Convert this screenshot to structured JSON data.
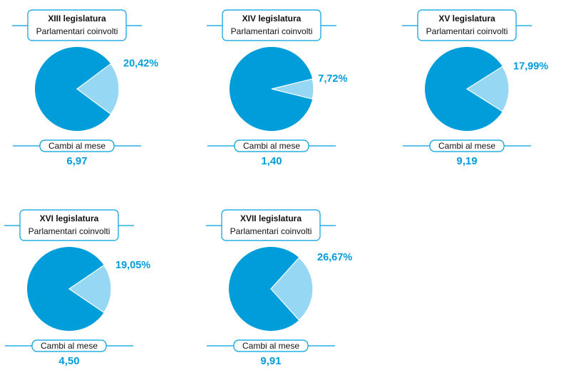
{
  "colors": {
    "main": "#009ddb",
    "slice": "#96d7f3",
    "line": "#009ddb",
    "text": "#111111"
  },
  "chart_data": [
    {
      "type": "pie",
      "title": "XIII legislatura",
      "subtitle": "Parlamentari coinvolti",
      "highlight_pct": 20.42,
      "pct_label": "20,42%",
      "footer_label": "Cambi al mese",
      "footer_value": "6,97"
    },
    {
      "type": "pie",
      "title": "XIV legislatura",
      "subtitle": "Parlamentari coinvolti",
      "highlight_pct": 7.72,
      "pct_label": "7,72%",
      "footer_label": "Cambi al mese",
      "footer_value": "1,40"
    },
    {
      "type": "pie",
      "title": "XV legislatura",
      "subtitle": "Parlamentari coinvolti",
      "highlight_pct": 17.99,
      "pct_label": "17,99%",
      "footer_label": "Cambi al mese",
      "footer_value": "9,19"
    },
    {
      "type": "pie",
      "title": "XVI legislatura",
      "subtitle": "Parlamentari coinvolti",
      "highlight_pct": 19.05,
      "pct_label": "19,05%",
      "footer_label": "Cambi al mese",
      "footer_value": "4,50"
    },
    {
      "type": "pie",
      "title": "XVII legislatura",
      "subtitle": "Parlamentari coinvolti",
      "highlight_pct": 26.67,
      "pct_label": "26,67%",
      "footer_label": "Cambi al mese",
      "footer_value": "9,91"
    }
  ]
}
